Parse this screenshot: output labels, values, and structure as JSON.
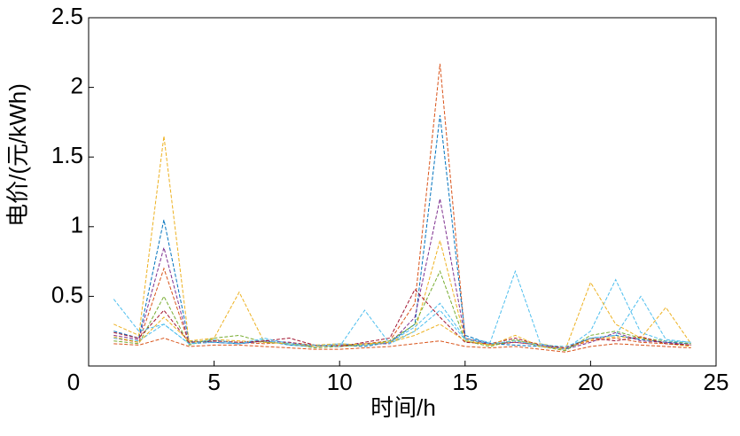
{
  "chart_data": {
    "type": "line",
    "xlabel": "时间/h",
    "ylabel": "电价/(元/kWh)",
    "x": [
      1,
      2,
      3,
      4,
      5,
      6,
      7,
      8,
      9,
      10,
      11,
      12,
      13,
      14,
      15,
      16,
      17,
      18,
      19,
      20,
      21,
      22,
      23,
      24
    ],
    "xlim": [
      0,
      25
    ],
    "xticks": [
      0,
      5,
      10,
      15,
      20,
      25
    ],
    "ylim": [
      0,
      2.5
    ],
    "yticks": [
      0.5,
      1,
      1.5,
      2,
      2.5
    ],
    "line_style": "dashed",
    "box": true,
    "series": [
      {
        "color": "#D95319",
        "values": [
          0.2,
          0.17,
          0.7,
          0.16,
          0.18,
          0.17,
          0.16,
          0.17,
          0.15,
          0.14,
          0.16,
          0.18,
          0.45,
          2.17,
          0.2,
          0.15,
          0.17,
          0.15,
          0.13,
          0.18,
          0.2,
          0.17,
          0.16,
          0.15
        ]
      },
      {
        "color": "#0072BD",
        "values": [
          0.25,
          0.2,
          1.05,
          0.18,
          0.17,
          0.16,
          0.18,
          0.15,
          0.14,
          0.15,
          0.14,
          0.17,
          0.3,
          1.8,
          0.22,
          0.16,
          0.15,
          0.14,
          0.12,
          0.2,
          0.22,
          0.19,
          0.17,
          0.16
        ]
      },
      {
        "color": "#EDB120",
        "values": [
          0.3,
          0.22,
          1.65,
          0.17,
          0.19,
          0.18,
          0.17,
          0.16,
          0.15,
          0.16,
          0.15,
          0.17,
          0.25,
          0.9,
          0.19,
          0.15,
          0.18,
          0.16,
          0.13,
          0.19,
          0.21,
          0.2,
          0.16,
          0.14
        ]
      },
      {
        "color": "#7E2F8E",
        "values": [
          0.22,
          0.19,
          0.85,
          0.16,
          0.17,
          0.16,
          0.18,
          0.17,
          0.14,
          0.15,
          0.16,
          0.16,
          0.35,
          1.2,
          0.2,
          0.16,
          0.17,
          0.15,
          0.12,
          0.17,
          0.24,
          0.18,
          0.17,
          0.15
        ]
      },
      {
        "color": "#77AC30",
        "values": [
          0.18,
          0.16,
          0.5,
          0.15,
          0.2,
          0.22,
          0.17,
          0.16,
          0.13,
          0.14,
          0.15,
          0.18,
          0.3,
          0.68,
          0.18,
          0.14,
          0.19,
          0.14,
          0.11,
          0.22,
          0.25,
          0.2,
          0.18,
          0.16
        ]
      },
      {
        "color": "#4DBEEE",
        "values": [
          0.2,
          0.18,
          0.3,
          0.16,
          0.17,
          0.16,
          0.19,
          0.15,
          0.14,
          0.16,
          0.15,
          0.17,
          0.28,
          0.45,
          0.2,
          0.17,
          0.68,
          0.16,
          0.12,
          0.25,
          0.62,
          0.24,
          0.18,
          0.17
        ]
      },
      {
        "color": "#A2142F",
        "values": [
          0.24,
          0.2,
          0.4,
          0.17,
          0.18,
          0.17,
          0.18,
          0.2,
          0.15,
          0.14,
          0.17,
          0.2,
          0.55,
          0.35,
          0.17,
          0.16,
          0.2,
          0.15,
          0.13,
          0.2,
          0.18,
          0.21,
          0.16,
          0.15
        ]
      },
      {
        "color": "#EDB120",
        "values": [
          0.21,
          0.17,
          0.35,
          0.18,
          0.2,
          0.53,
          0.17,
          0.16,
          0.14,
          0.15,
          0.16,
          0.17,
          0.22,
          0.3,
          0.18,
          0.15,
          0.22,
          0.14,
          0.12,
          0.6,
          0.3,
          0.2,
          0.42,
          0.16
        ]
      },
      {
        "color": "#4DBEEE",
        "values": [
          0.48,
          0.25,
          0.3,
          0.16,
          0.19,
          0.16,
          0.2,
          0.16,
          0.15,
          0.14,
          0.4,
          0.16,
          0.25,
          0.4,
          0.19,
          0.16,
          0.18,
          0.15,
          0.14,
          0.2,
          0.22,
          0.5,
          0.19,
          0.17
        ]
      },
      {
        "color": "#D95319",
        "values": [
          0.16,
          0.15,
          0.2,
          0.14,
          0.15,
          0.15,
          0.14,
          0.13,
          0.12,
          0.12,
          0.13,
          0.14,
          0.16,
          0.18,
          0.14,
          0.13,
          0.14,
          0.12,
          0.1,
          0.14,
          0.16,
          0.15,
          0.14,
          0.13
        ]
      }
    ]
  }
}
